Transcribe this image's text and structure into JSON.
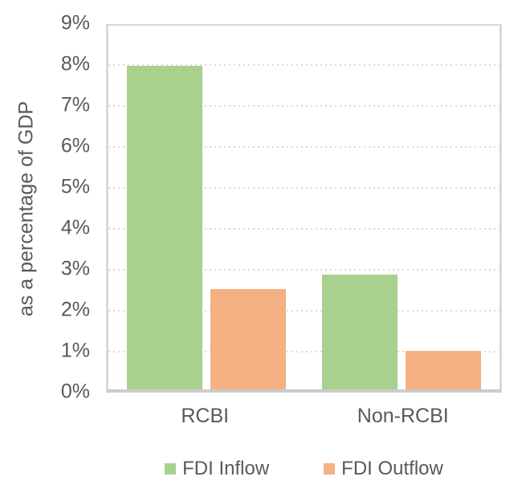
{
  "chart_data": {
    "type": "bar",
    "categories": [
      "RCBI",
      "Non-RCBI"
    ],
    "series": [
      {
        "name": "FDI Inflow",
        "color": "#a9d18e",
        "values": [
          7.9,
          2.8
        ]
      },
      {
        "name": "FDI Outflow",
        "color": "#f4b183",
        "values": [
          2.45,
          0.95
        ]
      }
    ],
    "title": "",
    "xlabel": "",
    "ylabel": "as a percentage of GDP",
    "ylim": [
      0,
      9
    ],
    "ytick_step": 1,
    "ytick_suffix": "%",
    "grid": true,
    "legend_position": "bottom"
  },
  "colors": {
    "text": "#595959",
    "gridline": "#d9d9d9",
    "plot_border": "#d9d9d9",
    "axis_line": "#cccccc",
    "background": "#ffffff"
  }
}
